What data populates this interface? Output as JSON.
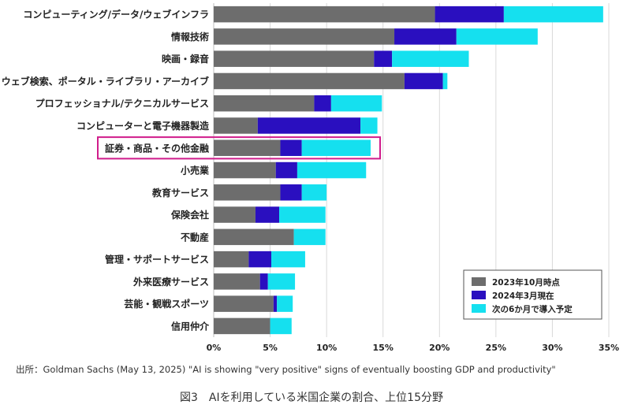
{
  "chart_data": {
    "type": "bar",
    "orientation": "horizontal",
    "stacked": true,
    "categories": [
      "コンピューティング/データ/ウェブインフラ",
      "情報技術",
      "映画・録音",
      "ウェブ検索、ポータル・ライブラリ・アーカイブ",
      "プロフェッショナル/テクニカルサービス",
      "コンピューターと電子機器製造",
      "証券・商品・その他金融",
      "小売業",
      "教育サービス",
      "保険会社",
      "不動産",
      "管理・サポートサービス",
      "外来医療サービス",
      "芸能・観戦スポーツ",
      "信用仲介"
    ],
    "series": [
      {
        "name": "2023年10月時点",
        "color": "#6d6d6d",
        "values": [
          19.6,
          16.0,
          14.2,
          16.9,
          8.9,
          3.9,
          5.9,
          5.5,
          5.9,
          3.7,
          7.1,
          3.1,
          4.1,
          5.3,
          5.0
        ]
      },
      {
        "name": "2024年3月現在",
        "color": "#2a0fbf",
        "values": [
          6.1,
          5.5,
          1.6,
          3.4,
          1.5,
          9.1,
          1.9,
          1.9,
          1.9,
          2.1,
          0,
          2.0,
          0.7,
          0.3,
          0
        ]
      },
      {
        "name": "次の6か月で導入予定",
        "color": "#15e0ef",
        "values": [
          8.8,
          7.2,
          6.8,
          0.4,
          4.5,
          1.5,
          6.1,
          6.1,
          2.2,
          4.1,
          2.8,
          3.0,
          2.4,
          1.4,
          1.9
        ]
      }
    ],
    "xlim": [
      0,
      35
    ],
    "xticks": [
      "0%",
      "5%",
      "10%",
      "15%",
      "20%",
      "25%",
      "30%",
      "35%"
    ],
    "grid": true,
    "legend_position": "bottom-right",
    "highlighted_category": "証券・商品・その他金融",
    "highlight_color": "#d01c8b"
  },
  "source_text": "出所：Goldman Sachs (May 13, 2025) \"AI is showing \"very positive\" signs of eventually boosting GDP and productivity\"",
  "caption": "図3　AIを利用している米国企業の割合、上位15分野"
}
